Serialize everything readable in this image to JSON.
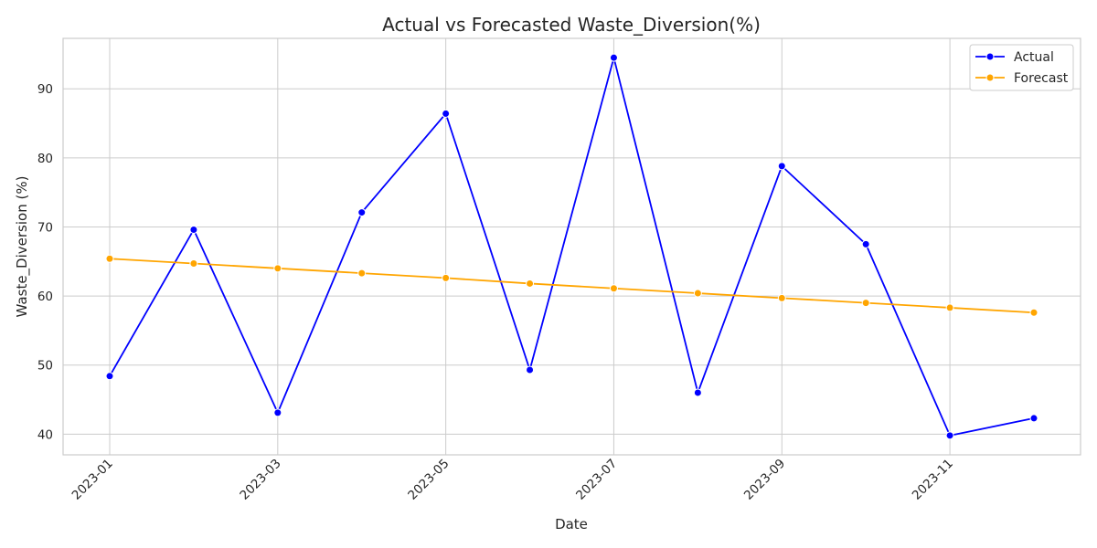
{
  "chart_data": {
    "type": "line",
    "title": "Actual vs Forecasted Waste_Diversion(%)",
    "xlabel": "Date",
    "ylabel": "Waste_Diversion (%)",
    "x": [
      "2023-01",
      "2023-02",
      "2023-03",
      "2023-04",
      "2023-05",
      "2023-06",
      "2023-07",
      "2023-08",
      "2023-09",
      "2023-10",
      "2023-11",
      "2023-12"
    ],
    "x_tick_labels": [
      "2023-01",
      "2023-03",
      "2023-05",
      "2023-07",
      "2023-09",
      "2023-11"
    ],
    "y_ticks": [
      40,
      50,
      60,
      70,
      80,
      90
    ],
    "ylim": [
      37.0,
      97.3
    ],
    "grid": true,
    "legend_position": "top-right",
    "series": [
      {
        "name": "Actual",
        "color": "#0000ff",
        "values": [
          48.4,
          69.6,
          43.1,
          72.1,
          86.4,
          49.3,
          94.5,
          46.0,
          78.8,
          67.5,
          39.8,
          42.3
        ]
      },
      {
        "name": "Forecast",
        "color": "#ffa500",
        "values": [
          65.4,
          64.7,
          64.0,
          63.3,
          62.6,
          61.8,
          61.1,
          60.4,
          59.7,
          59.0,
          58.3,
          57.6
        ]
      }
    ]
  }
}
